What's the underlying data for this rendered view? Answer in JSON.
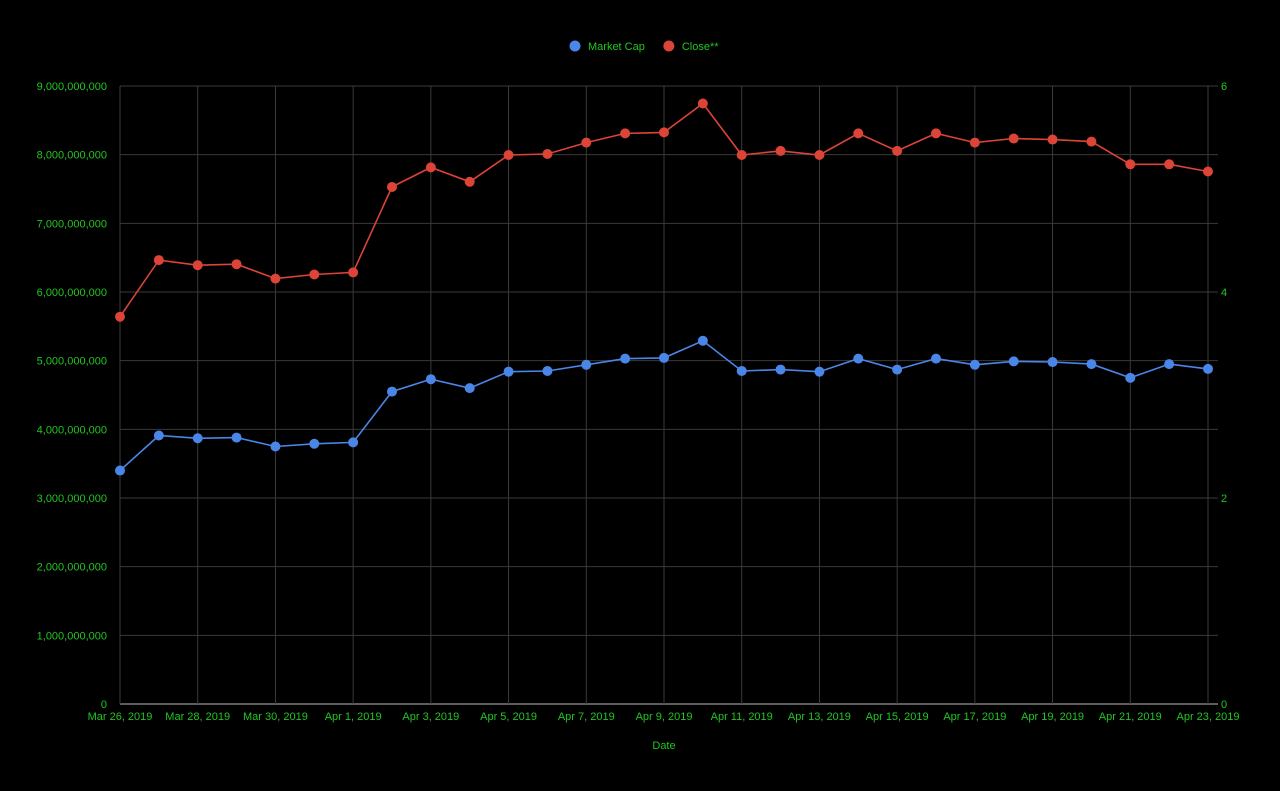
{
  "chart_data": {
    "type": "line",
    "x_label": "Date",
    "x_ticks": [
      "Mar 26, 2019",
      "Mar 28, 2019",
      "Mar 30, 2019",
      "Apr 1, 2019",
      "Apr 3, 2019",
      "Apr 5, 2019",
      "Apr 7, 2019",
      "Apr 9, 2019",
      "Apr 11, 2019",
      "Apr 13, 2019",
      "Apr 15, 2019",
      "Apr 17, 2019",
      "Apr 19, 2019",
      "Apr 21, 2019",
      "Apr 23, 2019"
    ],
    "x": [
      "2019-03-26",
      "2019-03-27",
      "2019-03-28",
      "2019-03-29",
      "2019-03-30",
      "2019-03-31",
      "2019-04-01",
      "2019-04-02",
      "2019-04-03",
      "2019-04-04",
      "2019-04-05",
      "2019-04-06",
      "2019-04-07",
      "2019-04-08",
      "2019-04-09",
      "2019-04-10",
      "2019-04-11",
      "2019-04-12",
      "2019-04-13",
      "2019-04-14",
      "2019-04-15",
      "2019-04-16",
      "2019-04-17",
      "2019-04-18",
      "2019-04-19",
      "2019-04-20",
      "2019-04-21",
      "2019-04-22",
      "2019-04-23"
    ],
    "y_left": {
      "range": [
        0,
        9000000000
      ],
      "ticks": [
        0,
        1000000000,
        2000000000,
        3000000000,
        4000000000,
        5000000000,
        6000000000,
        7000000000,
        8000000000,
        9000000000
      ],
      "tick_labels": [
        "0",
        "1,000,000,000",
        "2,000,000,000",
        "3,000,000,000",
        "4,000,000,000",
        "5,000,000,000",
        "6,000,000,000",
        "7,000,000,000",
        "8,000,000,000",
        "9,000,000,000"
      ]
    },
    "y_right": {
      "range": [
        0,
        6
      ],
      "ticks": [
        0,
        2,
        4,
        6
      ],
      "tick_labels": [
        "0",
        "2",
        "4",
        "6"
      ]
    },
    "grid": true,
    "legend_position": "top-center",
    "series": [
      {
        "name": "Market Cap",
        "axis": "left",
        "color": "#4a86e8",
        "values": [
          3400000000,
          3910000000,
          3870000000,
          3880000000,
          3750000000,
          3790000000,
          3810000000,
          4550000000,
          4730000000,
          4600000000,
          4840000000,
          4850000000,
          4940000000,
          5030000000,
          5040000000,
          5290000000,
          4850000000,
          4870000000,
          4840000000,
          5030000000,
          4870000000,
          5030000000,
          4940000000,
          4990000000,
          4980000000,
          4950000000,
          4750000000,
          4950000000,
          4880000000
        ]
      },
      {
        "name": "Close**",
        "axis": "right",
        "color": "#db4437",
        "values": [
          3.76,
          4.31,
          4.26,
          4.27,
          4.13,
          4.17,
          4.19,
          5.02,
          5.21,
          5.07,
          5.33,
          5.34,
          5.45,
          5.54,
          5.55,
          5.83,
          5.33,
          5.37,
          5.33,
          5.54,
          5.37,
          5.54,
          5.45,
          5.49,
          5.48,
          5.46,
          5.24,
          5.24,
          5.17
        ]
      }
    ]
  }
}
